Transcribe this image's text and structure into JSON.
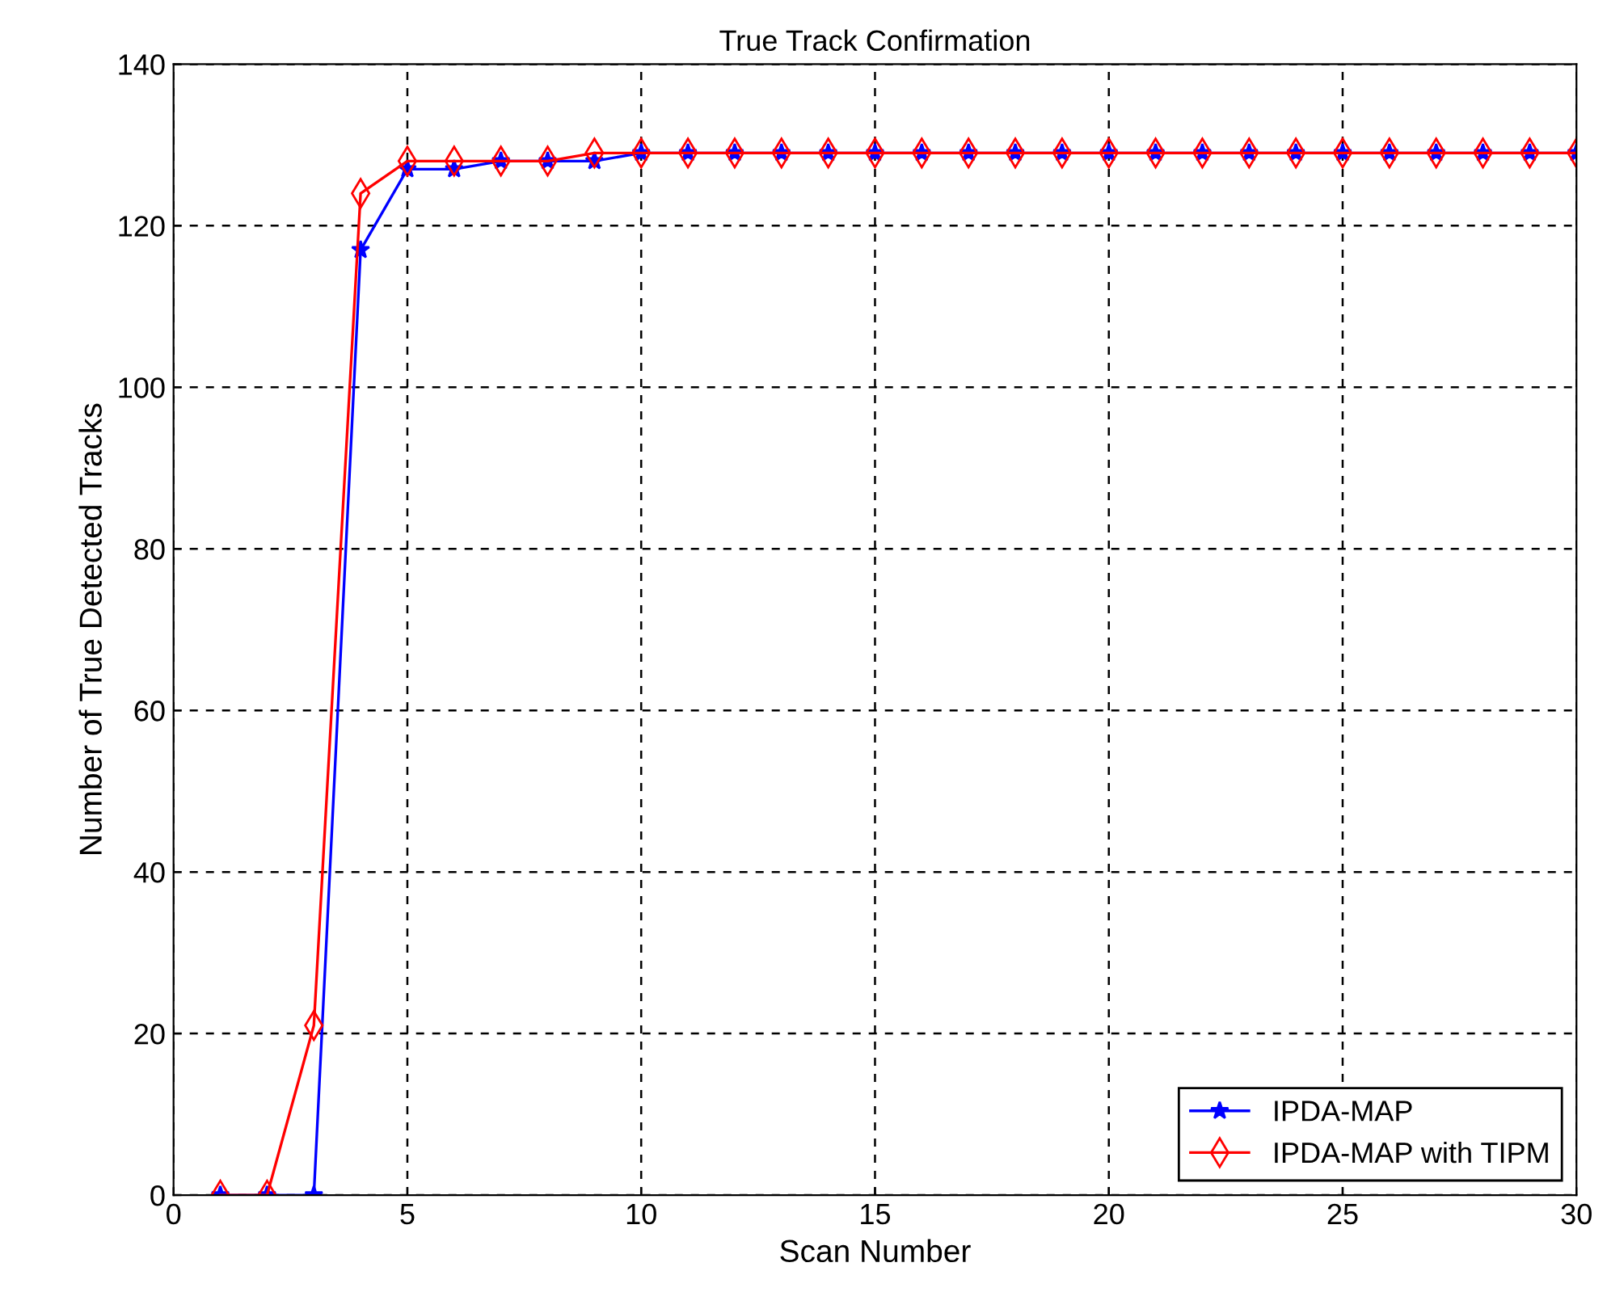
{
  "chart_data": {
    "type": "line",
    "title": "True Track Confirmation",
    "xlabel": "Scan Number",
    "ylabel": "Number of True Detected Tracks",
    "x": [
      1,
      2,
      3,
      4,
      5,
      6,
      7,
      8,
      9,
      10,
      11,
      12,
      13,
      14,
      15,
      16,
      17,
      18,
      19,
      20,
      21,
      22,
      23,
      24,
      25,
      26,
      27,
      28,
      29,
      30
    ],
    "series": [
      {
        "name": "IPDA-MAP",
        "color": "#0000ff",
        "marker": "star",
        "values": [
          0,
          0,
          0,
          117,
          127,
          127,
          128,
          128,
          128,
          129,
          129,
          129,
          129,
          129,
          129,
          129,
          129,
          129,
          129,
          129,
          129,
          129,
          129,
          129,
          129,
          129,
          129,
          129,
          129,
          129
        ]
      },
      {
        "name": "IPDA-MAP with TIPM",
        "color": "#ff0000",
        "marker": "diamond",
        "values": [
          0,
          0,
          21,
          124,
          128,
          128,
          128,
          128,
          129,
          129,
          129,
          129,
          129,
          129,
          129,
          129,
          129,
          129,
          129,
          129,
          129,
          129,
          129,
          129,
          129,
          129,
          129,
          129,
          129,
          129
        ]
      }
    ],
    "xlim": [
      0,
      30
    ],
    "xticks": [
      0,
      5,
      10,
      15,
      20,
      25,
      30
    ],
    "ylim": [
      0,
      140
    ],
    "yticks": [
      0,
      20,
      40,
      60,
      80,
      100,
      120,
      140
    ],
    "grid": true,
    "legend": "bottom right",
    "line_style": "solid"
  }
}
